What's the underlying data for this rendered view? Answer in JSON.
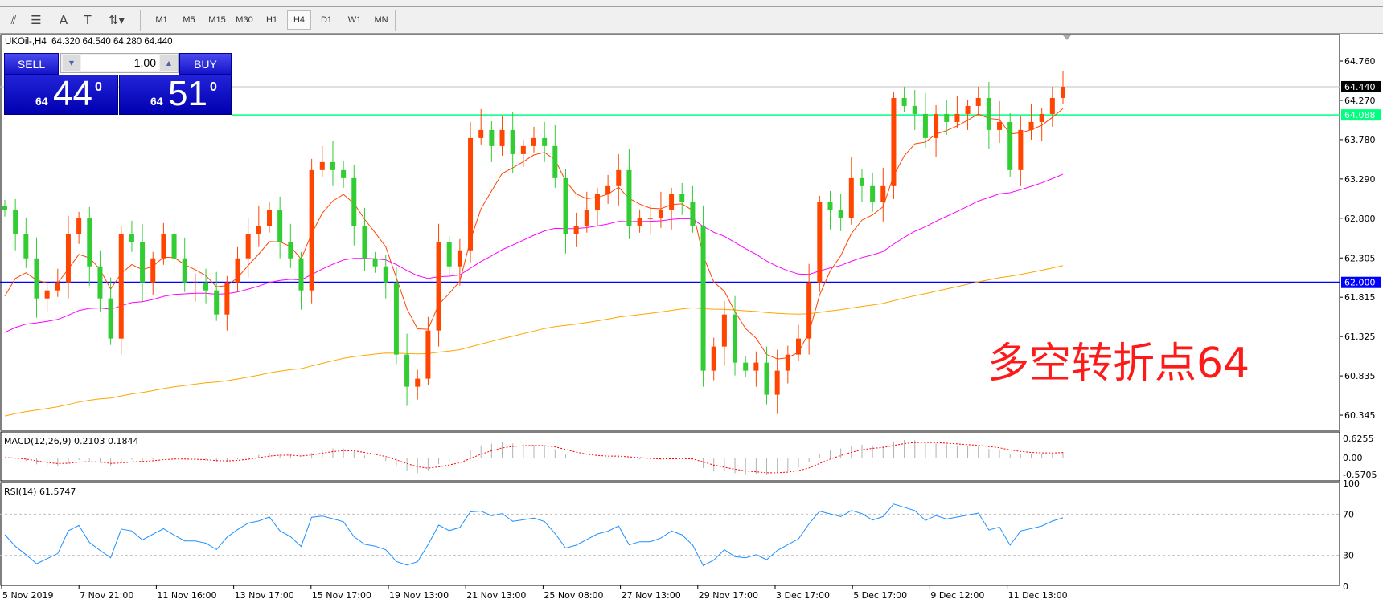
{
  "toolbar": {
    "icons": [
      "fibonacci-expansion-icon",
      "fibonacci-fan-icon",
      "text-icon",
      "text-label-icon",
      "arrows-icon"
    ],
    "timeframes": [
      "M1",
      "M5",
      "M15",
      "M30",
      "H1",
      "H4",
      "D1",
      "W1",
      "MN"
    ],
    "selected": "H4"
  },
  "header": {
    "symbol": "UKOil-,H4",
    "open": "64.320",
    "high": "64.540",
    "low": "64.280",
    "close": "64.440"
  },
  "trade": {
    "sell_label": "SELL",
    "buy_label": "BUY",
    "lot": "1.00",
    "sell_price": {
      "prefix": "64",
      "big": "44",
      "sup": "0"
    },
    "buy_price": {
      "prefix": "64",
      "big": "51",
      "sup": "0"
    }
  },
  "annotation": "多空转折点64",
  "colors": {
    "bull": "#ff4500",
    "bear": "#32cd32",
    "green_line": "#00ff7f",
    "blue_line": "#0000ff",
    "bid_line": "#c0c0c0"
  },
  "price_axis": {
    "ticks": [
      "64.760",
      "64.270",
      "63.780",
      "63.290",
      "62.800",
      "62.305",
      "61.815",
      "61.325",
      "60.835",
      "60.345"
    ],
    "bid_label": "64.440",
    "green_label": "64.088",
    "blue_label": "62.000",
    "range": [
      60.345,
      64.76
    ]
  },
  "lines": {
    "bid": 64.44,
    "green": 64.088,
    "blue": 62.0
  },
  "time_axis": [
    "5 Nov 2019",
    "7 Nov 21:00",
    "11 Nov 16:00",
    "13 Nov 17:00",
    "15 Nov 17:00",
    "19 Nov 13:00",
    "21 Nov 13:00",
    "25 Nov 08:00",
    "27 Nov 13:00",
    "29 Nov 17:00",
    "3 Dec 17:00",
    "5 Dec 17:00",
    "9 Dec 12:00",
    "11 Dec 13:00"
  ],
  "macd": {
    "label": "MACD(12,26,9) 0.2103 0.1844",
    "ticks": [
      "0.6255",
      "0.00",
      "-0.5705"
    ]
  },
  "rsi": {
    "label": "RSI(14) 61.5747",
    "ticks": [
      "100",
      "70",
      "30",
      "0"
    ],
    "levels": [
      70,
      30
    ]
  },
  "chart_data": {
    "type": "candlestick",
    "closes": [
      62.9,
      62.6,
      62.3,
      61.8,
      61.9,
      62.0,
      62.6,
      62.8,
      62.2,
      61.8,
      61.3,
      62.6,
      62.5,
      62.0,
      62.3,
      62.6,
      62.3,
      62.0,
      62.0,
      61.9,
      61.6,
      62.0,
      62.3,
      62.6,
      62.7,
      62.9,
      62.5,
      62.3,
      61.9,
      63.4,
      63.5,
      63.4,
      63.3,
      62.7,
      62.3,
      62.2,
      62.0,
      61.1,
      60.7,
      60.8,
      61.4,
      62.5,
      62.2,
      62.4,
      63.8,
      63.9,
      63.7,
      63.9,
      63.6,
      63.7,
      63.8,
      63.7,
      63.3,
      62.6,
      62.7,
      62.9,
      63.1,
      63.2,
      63.4,
      62.7,
      62.8,
      62.8,
      62.9,
      63.1,
      63.0,
      62.7,
      60.9,
      61.2,
      61.6,
      61.0,
      60.9,
      61.0,
      60.6,
      60.9,
      61.1,
      61.3,
      62.0,
      63.0,
      62.9,
      62.8,
      63.3,
      63.2,
      63.0,
      63.2,
      64.3,
      64.2,
      64.1,
      63.8,
      64.1,
      64.0,
      64.1,
      64.2,
      64.3,
      63.9,
      64.0,
      63.4,
      63.9,
      64.0,
      64.1,
      64.3,
      64.44
    ],
    "moving_averages": [
      {
        "color": "#ff4500",
        "period": 6,
        "start": 61.4
      },
      {
        "color": "#ff00ff",
        "period": 40,
        "start": 61.3
      },
      {
        "color": "#ffa500",
        "period": 150,
        "start": 60.3
      }
    ]
  }
}
